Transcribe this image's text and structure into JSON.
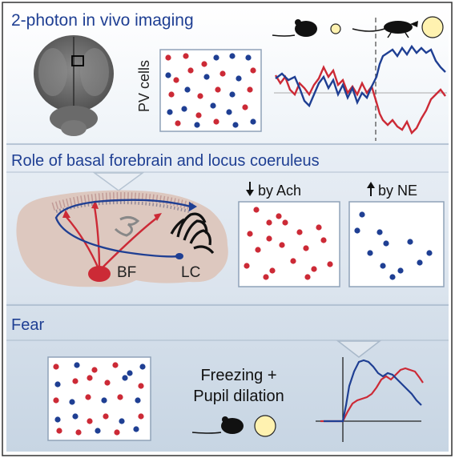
{
  "panels": {
    "imaging": {
      "title": "2-photon in vivo imaging",
      "pv_label": "PV cells"
    },
    "role": {
      "title": "Role of basal forebrain and locus coeruleus",
      "ach_label": "by Ach",
      "ne_label": "by NE",
      "bf_label": "BF",
      "lc_label": "LC"
    },
    "fear": {
      "title": "Fear",
      "freezing_label": "Freezing +",
      "pupil_label": "Pupil dilation"
    }
  },
  "colors": {
    "red": "#cc2a36",
    "blue": "#1f3f93",
    "title": "#1f3f93",
    "panel_bg_light": "#eef3f8",
    "panel_bg_mid": "#dde6f0",
    "panel_bg_dark": "#cfdbe8",
    "pupil_fill": "#fff2b0"
  },
  "icons": [
    "mouse-icon",
    "pupil-icon",
    "brain-top-view-icon",
    "brain-sagittal-icon",
    "arrow-down-icon",
    "arrow-up-icon"
  ]
}
